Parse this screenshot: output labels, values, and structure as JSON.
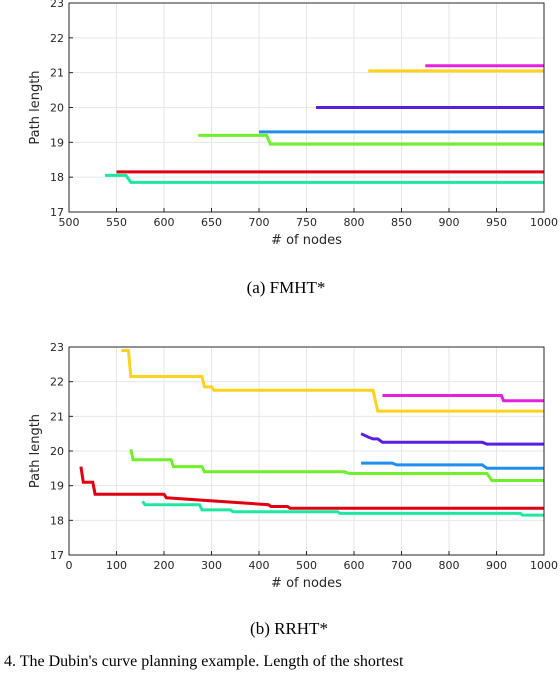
{
  "chart_data": [
    {
      "type": "line",
      "caption": "(a)  FMHT*",
      "xlabel": "# of nodes",
      "ylabel": "Path length",
      "xlim": [
        500,
        1000
      ],
      "ylim": [
        17,
        23
      ],
      "xticks": [
        500,
        550,
        600,
        650,
        700,
        750,
        800,
        850,
        900,
        950,
        1000
      ],
      "yticks": [
        17,
        18,
        19,
        20,
        21,
        22,
        23
      ],
      "grid": true,
      "series": [
        {
          "color": "#e0000f",
          "x": [
            550,
            1000
          ],
          "y": [
            18.15,
            18.15
          ]
        },
        {
          "color": "#1ee8a0",
          "x": [
            538,
            560,
            565,
            1000
          ],
          "y": [
            18.05,
            18.05,
            17.85,
            17.85
          ]
        },
        {
          "color": "#6ef02a",
          "x": [
            636,
            708,
            712,
            1000
          ],
          "y": [
            19.2,
            19.2,
            18.95,
            18.95
          ]
        },
        {
          "color": "#1e8ff0",
          "x": [
            700,
            1000
          ],
          "y": [
            19.3,
            19.3
          ]
        },
        {
          "color": "#5a1ee0",
          "x": [
            760,
            1000
          ],
          "y": [
            20.0,
            20.0
          ]
        },
        {
          "color": "#ffd21e",
          "x": [
            815,
            1000
          ],
          "y": [
            21.05,
            21.05
          ]
        },
        {
          "color": "#e81ee0",
          "x": [
            875,
            1000
          ],
          "y": [
            21.2,
            21.2
          ]
        }
      ]
    },
    {
      "type": "line",
      "caption": "(b)  RRHT*",
      "xlabel": "# of nodes",
      "ylabel": "Path length",
      "xlim": [
        0,
        1000
      ],
      "ylim": [
        17,
        23
      ],
      "xticks": [
        0,
        100,
        200,
        300,
        400,
        500,
        600,
        700,
        800,
        900,
        1000
      ],
      "yticks": [
        17,
        18,
        19,
        20,
        21,
        22,
        23
      ],
      "grid": true,
      "series": [
        {
          "color": "#ffd21e",
          "x": [
            110,
            125,
            130,
            280,
            285,
            300,
            305,
            640,
            650,
            1000
          ],
          "y": [
            22.9,
            22.9,
            22.15,
            22.15,
            21.85,
            21.85,
            21.75,
            21.75,
            21.15,
            21.15
          ]
        },
        {
          "color": "#e81ee0",
          "x": [
            660,
            870,
            880,
            910,
            915,
            1000
          ],
          "y": [
            21.6,
            21.6,
            21.6,
            21.6,
            21.45,
            21.45
          ]
        },
        {
          "color": "#5a1ee0",
          "x": [
            615,
            630,
            640,
            650,
            660,
            670,
            870,
            880,
            1000
          ],
          "y": [
            20.5,
            20.4,
            20.35,
            20.35,
            20.25,
            20.25,
            20.25,
            20.2,
            20.2
          ]
        },
        {
          "color": "#1e8ff0",
          "x": [
            615,
            680,
            690,
            870,
            880,
            1000
          ],
          "y": [
            19.65,
            19.65,
            19.6,
            19.6,
            19.5,
            19.5
          ]
        },
        {
          "color": "#6ef02a",
          "x": [
            130,
            135,
            215,
            220,
            280,
            285,
            580,
            590,
            880,
            890,
            1000
          ],
          "y": [
            20.05,
            19.75,
            19.75,
            19.55,
            19.55,
            19.4,
            19.4,
            19.35,
            19.35,
            19.15,
            19.15
          ]
        },
        {
          "color": "#e0000f",
          "x": [
            25,
            30,
            50,
            55,
            200,
            205,
            420,
            425,
            460,
            465,
            1000
          ],
          "y": [
            19.55,
            19.1,
            19.1,
            18.75,
            18.75,
            18.65,
            18.45,
            18.4,
            18.4,
            18.35,
            18.35
          ]
        },
        {
          "color": "#1ee8a0",
          "x": [
            155,
            160,
            275,
            280,
            340,
            345,
            565,
            570,
            950,
            955,
            1000
          ],
          "y": [
            18.55,
            18.45,
            18.45,
            18.3,
            18.3,
            18.25,
            18.25,
            18.2,
            18.2,
            18.15,
            18.15
          ]
        }
      ]
    }
  ],
  "footer_text": "4.  The Dubin's curve planning example. Length of the shortest"
}
